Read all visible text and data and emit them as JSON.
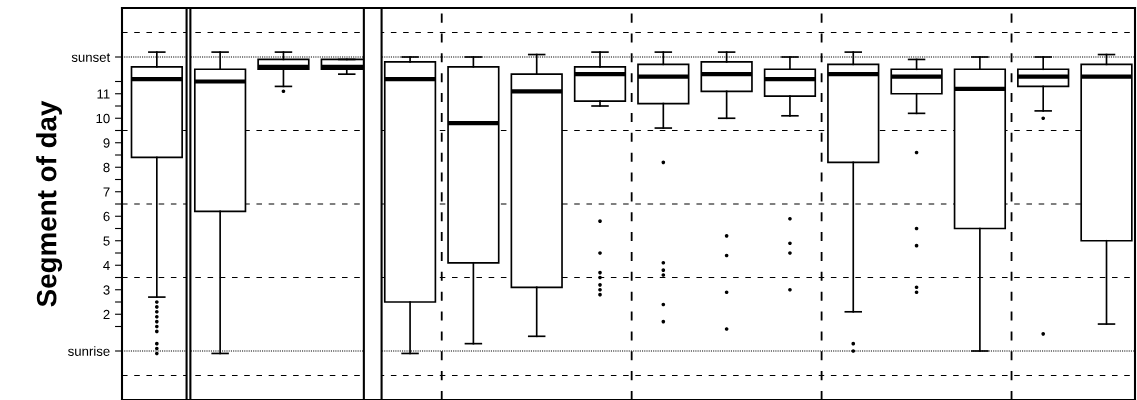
{
  "chart_data": {
    "type": "box",
    "ylabel": "Segment of day",
    "categories": [
      null,
      null,
      null,
      null,
      null,
      null,
      null,
      null,
      null,
      null,
      null,
      null,
      null,
      null,
      null,
      null
    ],
    "ylim": [
      -2,
      14
    ],
    "tick_labels": "y",
    "yticks": [
      {
        "value": 0,
        "label": "sunrise"
      },
      {
        "value": 1,
        "label": null
      },
      {
        "value": 1.5,
        "label": "2"
      },
      {
        "value": 2,
        "label": null
      },
      {
        "value": 2.5,
        "label": "3"
      },
      {
        "value": 3,
        "label": null
      },
      {
        "value": 3.5,
        "label": "4"
      },
      {
        "value": 4,
        "label": null
      },
      {
        "value": 4.5,
        "label": "5"
      },
      {
        "value": 5,
        "label": null
      },
      {
        "value": 5.5,
        "label": "6"
      },
      {
        "value": 6,
        "label": null
      },
      {
        "value": 6.5,
        "label": "7"
      },
      {
        "value": 7,
        "label": null
      },
      {
        "value": 7.5,
        "label": "8"
      },
      {
        "value": 8,
        "label": null
      },
      {
        "value": 8.5,
        "label": "9"
      },
      {
        "value": 9,
        "label": null
      },
      {
        "value": 9.5,
        "label": "10"
      },
      {
        "value": 10,
        "label": null
      },
      {
        "value": 10.5,
        "label": "11"
      },
      {
        "value": 11,
        "label": null
      },
      {
        "value": 12,
        "label": "sunset"
      }
    ],
    "ref_lines": [
      {
        "axis": "y",
        "value": -1,
        "line_style": "dashed"
      },
      {
        "axis": "y",
        "value": 3,
        "line_style": "dashed"
      },
      {
        "axis": "y",
        "value": 6,
        "line_style": "dashed"
      },
      {
        "axis": "y",
        "value": 9,
        "line_style": "dashed"
      },
      {
        "axis": "y",
        "value": 13,
        "line_style": "dashed"
      },
      {
        "axis": "y",
        "value": 0,
        "line_style": "dotted"
      },
      {
        "axis": "y",
        "value": 12,
        "line_style": "dotted"
      }
    ],
    "boxes": [
      {
        "low": 2.2,
        "q1": 7.9,
        "median": 11.1,
        "q3": 11.6,
        "high": 12.2,
        "outliers": [
          2.0,
          1.8,
          1.6,
          1.4,
          1.2,
          1.0,
          0.8,
          0.3,
          0.1,
          -0.1
        ]
      },
      {
        "low": -0.1,
        "q1": 5.7,
        "median": 11.0,
        "q3": 11.5,
        "high": 12.2
      },
      {
        "low": 10.8,
        "q1": 11.5,
        "median": 11.6,
        "q3": 11.9,
        "high": 12.2,
        "outliers": [
          10.6
        ]
      },
      {
        "low": 11.3,
        "q1": 11.5,
        "median": 11.6,
        "q3": 11.9,
        "high": 11.9
      },
      {
        "low": -0.1,
        "q1": 2.0,
        "median": 11.1,
        "q3": 11.8,
        "high": 12.0
      },
      {
        "low": 0.3,
        "q1": 3.6,
        "median": 9.3,
        "q3": 11.6,
        "high": 12.0
      },
      {
        "low": 0.6,
        "q1": 2.6,
        "median": 10.6,
        "q3": 11.3,
        "high": 12.1
      },
      {
        "low": 10.0,
        "q1": 10.2,
        "median": 11.3,
        "q3": 11.6,
        "high": 12.2,
        "outliers": [
          5.3,
          4.0,
          3.2,
          3.0,
          2.7,
          2.5,
          2.3
        ]
      },
      {
        "low": 9.1,
        "q1": 10.1,
        "median": 11.2,
        "q3": 11.7,
        "high": 12.2,
        "outliers": [
          7.7,
          3.6,
          3.3,
          3.1,
          1.9,
          1.2
        ]
      },
      {
        "low": 9.5,
        "q1": 10.6,
        "median": 11.3,
        "q3": 11.8,
        "high": 12.2,
        "outliers": [
          4.7,
          3.9,
          2.4,
          0.9
        ]
      },
      {
        "low": 9.6,
        "q1": 10.4,
        "median": 11.1,
        "q3": 11.5,
        "high": 12.0,
        "outliers": [
          5.4,
          4.4,
          4.0,
          2.5
        ]
      },
      {
        "low": 1.6,
        "q1": 7.7,
        "median": 11.3,
        "q3": 11.7,
        "high": 12.2,
        "outliers": [
          0.3,
          0.0
        ]
      },
      {
        "low": 9.7,
        "q1": 10.5,
        "median": 11.2,
        "q3": 11.5,
        "high": 11.9,
        "outliers": [
          8.1,
          5.0,
          4.3,
          2.6,
          2.4
        ]
      },
      {
        "low": 0.0,
        "q1": 5.0,
        "median": 10.7,
        "q3": 11.5,
        "high": 12.0
      },
      {
        "low": 9.8,
        "q1": 10.8,
        "median": 11.2,
        "q3": 11.5,
        "high": 12.0,
        "outliers": [
          9.5,
          0.7
        ]
      },
      {
        "low": 1.1,
        "q1": 4.5,
        "median": 11.2,
        "q3": 11.7,
        "high": 12.1
      }
    ]
  }
}
